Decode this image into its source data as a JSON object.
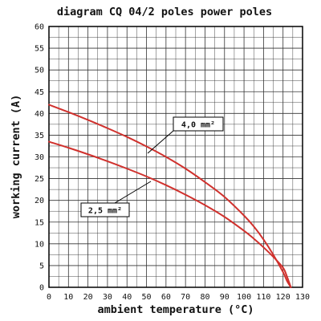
{
  "chart_data": {
    "type": "line",
    "title": "diagram CQ 04/2 poles power poles",
    "xlabel": "ambient temperature (°C)",
    "ylabel": "working current (A)",
    "xlim": [
      0,
      130
    ],
    "ylim": [
      0,
      60
    ],
    "x_ticks": [
      0,
      10,
      20,
      30,
      40,
      50,
      60,
      70,
      80,
      90,
      100,
      110,
      120,
      130
    ],
    "y_ticks": [
      0,
      5,
      10,
      15,
      20,
      25,
      30,
      35,
      40,
      45,
      50,
      55,
      60
    ],
    "x_tick_labels": [
      "0",
      "10",
      "20",
      "30",
      "40",
      "50",
      "60",
      "70",
      "80",
      "90",
      "100",
      "110",
      "120",
      "130"
    ],
    "y_tick_labels": [
      "0",
      "5",
      "10",
      "15",
      "20",
      "25",
      "30",
      "35",
      "40",
      "45",
      "50",
      "55",
      "60"
    ],
    "grid": true,
    "series": [
      {
        "name": "4,0 mm²",
        "color": "#d0312d",
        "x": [
          0,
          10,
          20,
          30,
          40,
          50,
          60,
          70,
          80,
          90,
          100,
          105,
          110,
          115,
          120,
          122,
          124
        ],
        "y": [
          42,
          40.3,
          38.5,
          36.6,
          34.6,
          32.4,
          30,
          27.3,
          24.2,
          20.8,
          16.5,
          14,
          11,
          7.5,
          3.5,
          1.5,
          0
        ]
      },
      {
        "name": "2,5 mm²",
        "color": "#d0312d",
        "x": [
          0,
          10,
          20,
          30,
          40,
          50,
          60,
          70,
          80,
          90,
          100,
          105,
          110,
          115,
          120,
          122,
          124
        ],
        "y": [
          33.5,
          32.1,
          30.6,
          29,
          27.3,
          25.5,
          23.5,
          21.3,
          18.9,
          16.2,
          13,
          11.2,
          9.2,
          7,
          4.5,
          2.5,
          0
        ]
      }
    ],
    "annotations": [
      {
        "text": "4,0 mm²",
        "series": 0
      },
      {
        "text": "2,5 mm²",
        "series": 1
      }
    ]
  }
}
